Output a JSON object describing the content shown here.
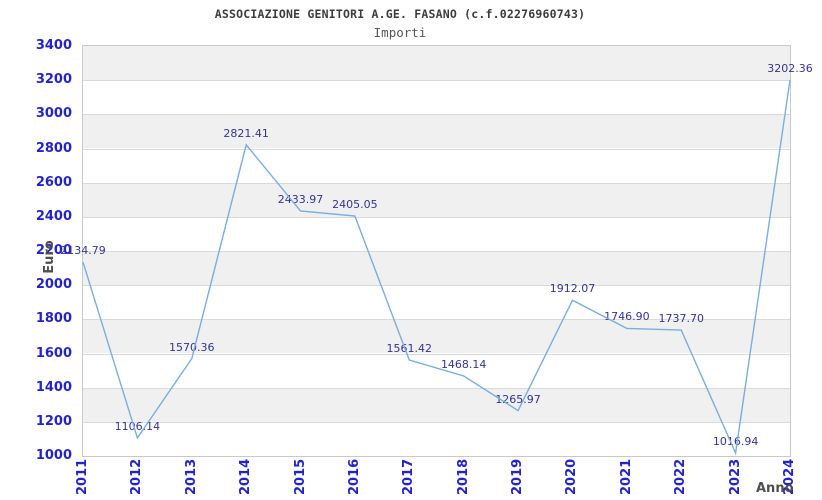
{
  "header": {
    "title": "ASSOCIAZIONE GENITORI A.GE. FASANO (c.f.02276960743)",
    "subtitle": "Importi"
  },
  "chart_data": {
    "type": "line",
    "title": "ASSOCIAZIONE GENITORI A.GE. FASANO (c.f.02276960743)",
    "subtitle": "Importi",
    "xlabel": "Anno",
    "ylabel": "Euro",
    "categories": [
      "2011",
      "2012",
      "2013",
      "2014",
      "2015",
      "2016",
      "2017",
      "2018",
      "2019",
      "2020",
      "2021",
      "2022",
      "2023",
      "2024"
    ],
    "values": [
      2134.79,
      1106.14,
      1570.36,
      2821.41,
      2433.97,
      2405.05,
      1561.42,
      1468.14,
      1265.97,
      1912.07,
      1746.9,
      1737.7,
      1016.94,
      3202.36
    ],
    "point_labels": [
      "2134.79",
      "1106.14",
      "1570.36",
      "2821.41",
      "2433.97",
      "2405.05",
      "1561.42",
      "1468.14",
      "1265.97",
      "1912.07",
      "1746.90",
      "1737.70",
      "1016.94",
      "3202.36"
    ],
    "ylim": [
      1000,
      3400
    ],
    "ytick_step": 200,
    "yticks": [
      "3400",
      "3200",
      "3000",
      "2800",
      "2600",
      "2400",
      "2200",
      "2000",
      "1800",
      "1600",
      "1400",
      "1200",
      "1000"
    ],
    "grid": true,
    "legend": null,
    "colors": {
      "line": "#7aaede",
      "point_label": "#333399",
      "tick_label": "#2323cc",
      "band_gray": "#f0f0f0",
      "band_white": "#ffffff",
      "gridline": "#dadada",
      "plot_border": "#c9c9c9",
      "title": "#3c3c3c",
      "axis_title": "#4f4f4f"
    }
  }
}
